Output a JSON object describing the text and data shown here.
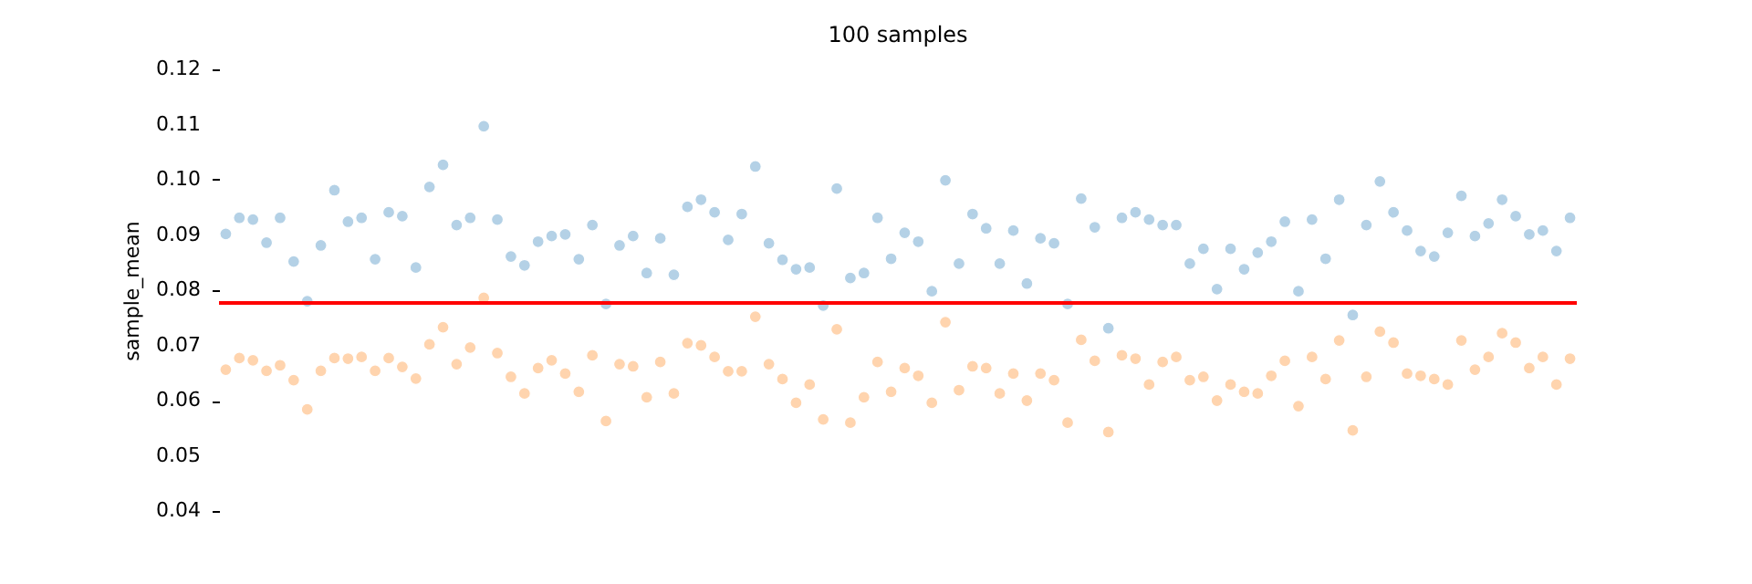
{
  "chart_data": {
    "type": "scatter",
    "title": "100 samples",
    "ylabel": "sample_mean",
    "categories": [
      null,
      null,
      null,
      null,
      null,
      null,
      null,
      null,
      null,
      null,
      null,
      null,
      null,
      null,
      null,
      null,
      null,
      null,
      null,
      null,
      null,
      null,
      null,
      null,
      null,
      null,
      null,
      null,
      null,
      null,
      null,
      null,
      null,
      null,
      null,
      null,
      null,
      null,
      null,
      null,
      null,
      null,
      null,
      null,
      null,
      null,
      null,
      null,
      null,
      null,
      null,
      null,
      null,
      null,
      null,
      null,
      null,
      null,
      null,
      null,
      null,
      null,
      null,
      null,
      null,
      null,
      null,
      null,
      null,
      null,
      null,
      null,
      null,
      null,
      null,
      null,
      null,
      null,
      null,
      null,
      null,
      null,
      null,
      null,
      null,
      null,
      null,
      null,
      null,
      null,
      null,
      null,
      null,
      null,
      null,
      null,
      null,
      null,
      null,
      null
    ],
    "series": [
      {
        "color": "#1f77b4",
        "values": [
          0.0902,
          0.0931,
          0.0928,
          0.0886,
          0.0931,
          0.0852,
          0.078,
          0.0881,
          0.0981,
          0.0924,
          0.0931,
          0.0856,
          0.0941,
          0.0934,
          0.0841,
          0.0987,
          0.1027,
          0.0918,
          0.0931,
          0.1097,
          0.0928,
          0.0861,
          0.0845,
          0.0888,
          0.0898,
          0.0901,
          0.0856,
          0.0918,
          0.0775,
          0.0881,
          0.0898,
          0.0831,
          0.0894,
          0.0828,
          0.0951,
          0.0964,
          0.0941,
          0.0891,
          0.0938,
          0.1024,
          0.0885,
          0.0855,
          0.0838,
          0.0841,
          0.0772,
          0.0984,
          0.0822,
          0.0831,
          0.0931,
          0.0857,
          0.0904,
          0.0888,
          0.0798,
          0.0999,
          0.0848,
          0.0938,
          0.0912,
          0.0848,
          0.0908,
          0.0812,
          0.0894,
          0.0885,
          0.0775,
          0.0966,
          0.0914,
          0.0731,
          0.0931,
          0.0941,
          0.0928,
          0.0918,
          0.0918,
          0.0848,
          0.0875,
          0.0802,
          0.0875,
          0.0838,
          0.0868,
          0.0888,
          0.0924,
          0.0798,
          0.0928,
          0.0857,
          0.0964,
          0.0755,
          0.0918,
          0.0997,
          0.0941,
          0.0908,
          0.0871,
          0.0861,
          0.0904,
          0.0971,
          0.0898,
          0.0921,
          0.0964,
          0.0934,
          0.0901,
          0.0908,
          0.0871,
          0.0931
        ]
      },
      {
        "color": "#ff7f0e",
        "values": [
          0.0656,
          0.0677,
          0.0673,
          0.0654,
          0.0664,
          0.0637,
          0.0584,
          0.0654,
          0.0677,
          0.0676,
          0.0679,
          0.0654,
          0.0677,
          0.0661,
          0.064,
          0.0702,
          0.0733,
          0.0666,
          0.0696,
          0.0786,
          0.0686,
          0.0643,
          0.0613,
          0.0659,
          0.0673,
          0.0649,
          0.0616,
          0.0682,
          0.0563,
          0.0666,
          0.0662,
          0.0606,
          0.067,
          0.0613,
          0.0704,
          0.07,
          0.0679,
          0.0653,
          0.0653,
          0.0752,
          0.0666,
          0.0639,
          0.0596,
          0.0629,
          0.0566,
          0.0729,
          0.056,
          0.0606,
          0.067,
          0.0616,
          0.0659,
          0.0645,
          0.0596,
          0.0742,
          0.0619,
          0.0662,
          0.0659,
          0.0613,
          0.0649,
          0.06,
          0.0649,
          0.0637,
          0.056,
          0.071,
          0.0672,
          0.0543,
          0.0682,
          0.0676,
          0.0629,
          0.067,
          0.0679,
          0.0637,
          0.0643,
          0.06,
          0.0629,
          0.0616,
          0.0613,
          0.0645,
          0.0672,
          0.059,
          0.0679,
          0.0639,
          0.0709,
          0.0546,
          0.0643,
          0.0725,
          0.0705,
          0.0649,
          0.0645,
          0.0639,
          0.0629,
          0.0709,
          0.0656,
          0.0679,
          0.0722,
          0.0705,
          0.0659,
          0.0679,
          0.0629,
          0.0676
        ]
      }
    ],
    "ylim": [
      0.04,
      0.12
    ],
    "yticks": [
      0.04,
      0.05,
      0.06,
      0.07,
      0.08,
      0.09,
      {
        "value": 0.1,
        "label": "0.10"
      },
      0.11,
      0.12
    ],
    "ref_lines": [
      {
        "axis": "y",
        "value": 0.0777,
        "color": "#ff0000",
        "line_style": "solid"
      }
    ],
    "marker": "circle",
    "grid": false,
    "tick_labels": "y"
  }
}
